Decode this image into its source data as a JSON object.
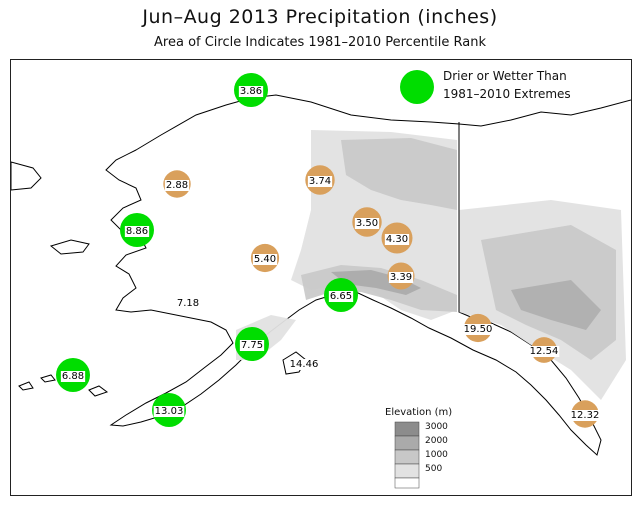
{
  "title": "Jun–Aug 2013 Precipitation (inches)",
  "subtitle": "Area of Circle Indicates 1981–2010 Percentile Rank",
  "colors": {
    "extreme": "#00dd00",
    "normal": "#d9a05c",
    "elevation_3000": "#8c8c8c",
    "elevation_2000": "#aaaaaa",
    "elevation_1000": "#c8c8c8",
    "elevation_500": "#e2e2e2",
    "elevation_0": "#ffffff"
  },
  "legend": {
    "extremes_line1": "Drier or Wetter Than",
    "extremes_line2": "1981–2010 Extremes"
  },
  "elevation_legend": {
    "title": "Elevation (m)",
    "levels": [
      "3000",
      "2000",
      "1000",
      "500"
    ]
  },
  "stations": [
    {
      "value": "3.86",
      "category": "extreme",
      "percentile": 100
    },
    {
      "value": "2.88",
      "category": "normal",
      "percentile": 45
    },
    {
      "value": "3.74",
      "category": "normal",
      "percentile": 60
    },
    {
      "value": "8.86",
      "category": "extreme",
      "percentile": 100
    },
    {
      "value": "3.50",
      "category": "normal",
      "percentile": 60
    },
    {
      "value": "4.30",
      "category": "normal",
      "percentile": 72
    },
    {
      "value": "5.40",
      "category": "normal",
      "percentile": 50
    },
    {
      "value": "3.39",
      "category": "normal",
      "percentile": 42
    },
    {
      "value": "6.65",
      "category": "extreme",
      "percentile": 100
    },
    {
      "value": "7.18",
      "category": "none",
      "percentile": 0
    },
    {
      "value": "19.50",
      "category": "normal",
      "percentile": 50
    },
    {
      "value": "7.75",
      "category": "extreme",
      "percentile": 100
    },
    {
      "value": "12.54",
      "category": "normal",
      "percentile": 35
    },
    {
      "value": "6.88",
      "category": "extreme",
      "percentile": 100
    },
    {
      "value": "14.46",
      "category": "none",
      "percentile": 0
    },
    {
      "value": "13.03",
      "category": "extreme",
      "percentile": 100
    },
    {
      "value": "12.32",
      "category": "normal",
      "percentile": 45
    }
  ]
}
